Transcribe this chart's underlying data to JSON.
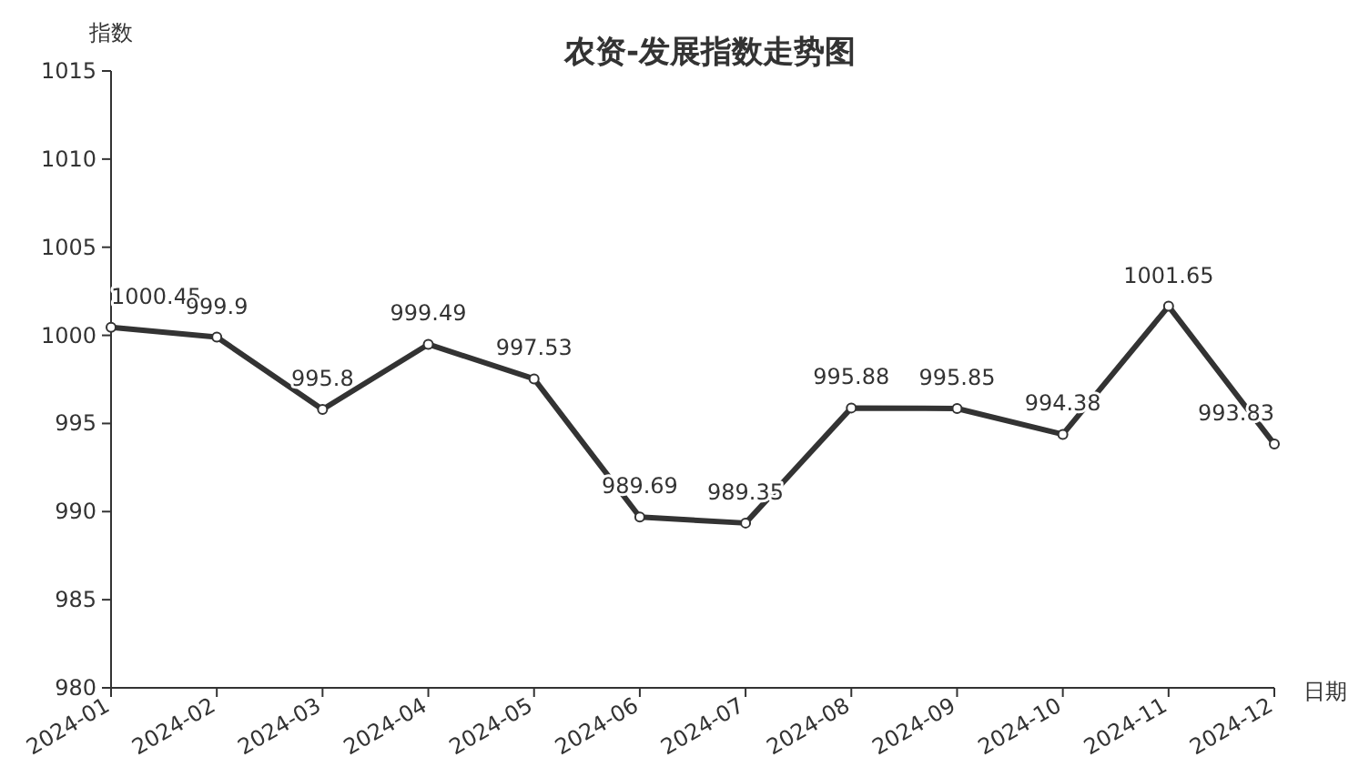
{
  "chart_data": {
    "type": "line",
    "title": "农资-发展指数走势图",
    "xlabel": "日期",
    "ylabel": "指数",
    "categories": [
      "2024-01",
      "2024-02",
      "2024-03",
      "2024-04",
      "2024-05",
      "2024-06",
      "2024-07",
      "2024-08",
      "2024-09",
      "2024-10",
      "2024-11",
      "2024-12"
    ],
    "values": [
      1000.45,
      999.9,
      995.8,
      999.49,
      997.53,
      989.69,
      989.35,
      995.88,
      995.85,
      994.38,
      1001.65,
      993.83
    ],
    "color": "#333333",
    "ylim": [
      980,
      1015
    ],
    "yticks": [
      980,
      985,
      990,
      995,
      1000,
      1005,
      1010,
      1015
    ],
    "data_labels": true,
    "marker": "circle",
    "line_style": "solid"
  }
}
